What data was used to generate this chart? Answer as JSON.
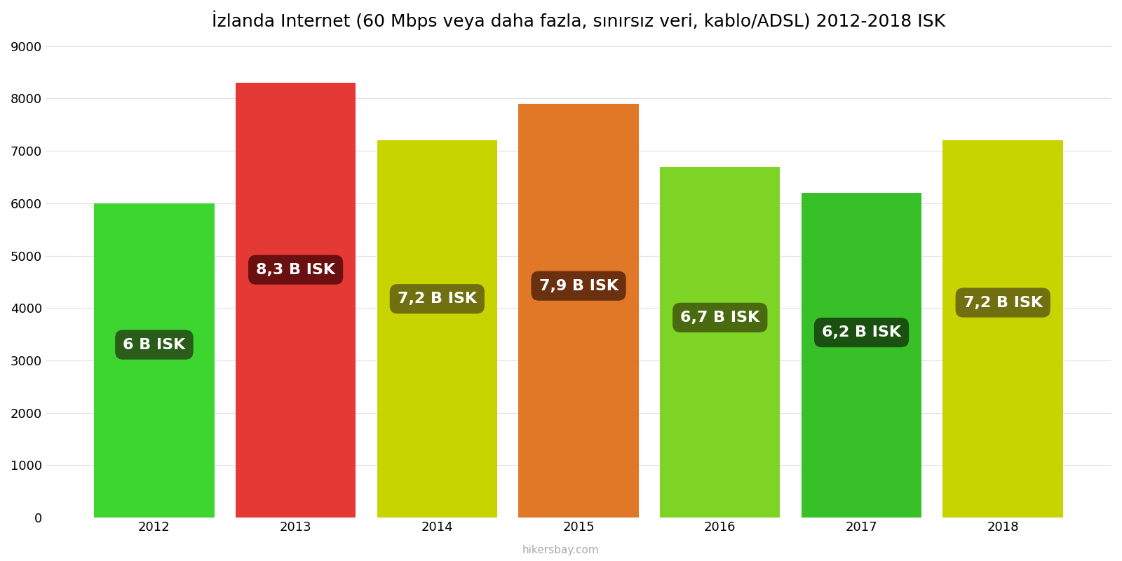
{
  "years": [
    2012,
    2013,
    2014,
    2015,
    2016,
    2017,
    2018
  ],
  "values": [
    6000,
    8300,
    7200,
    7900,
    6700,
    6200,
    7200
  ],
  "labels": [
    "6 B ISK",
    "8,3 B ISK",
    "7,2 B ISK",
    "7,9 B ISK",
    "6,7 B ISK",
    "6,2 B ISK",
    "7,2 B ISK"
  ],
  "bar_colors": [
    "#3DD631",
    "#E53935",
    "#C8D400",
    "#E07828",
    "#7ED424",
    "#38C028",
    "#C8D400"
  ],
  "label_bg_colors": [
    "#2A5C1A",
    "#6B1010",
    "#707010",
    "#6B3010",
    "#4A6A10",
    "#1A5010",
    "#707010"
  ],
  "title": "İzlanda Internet (60 Mbps veya daha fazla, sınırsız veri, kablo/ADSL) 2012-2018 ISK",
  "ylim": [
    0,
    9000
  ],
  "yticks": [
    0,
    1000,
    2000,
    3000,
    4000,
    5000,
    6000,
    7000,
    8000,
    9000
  ],
  "background_color": "#ffffff",
  "grid_color": "#e0e0e0",
  "watermark": "hikersbay.com",
  "title_fontsize": 18,
  "label_fontsize": 16,
  "bar_width": 0.85,
  "label_y_fractions": [
    0.55,
    0.57,
    0.58,
    0.56,
    0.57,
    0.57,
    0.57
  ]
}
